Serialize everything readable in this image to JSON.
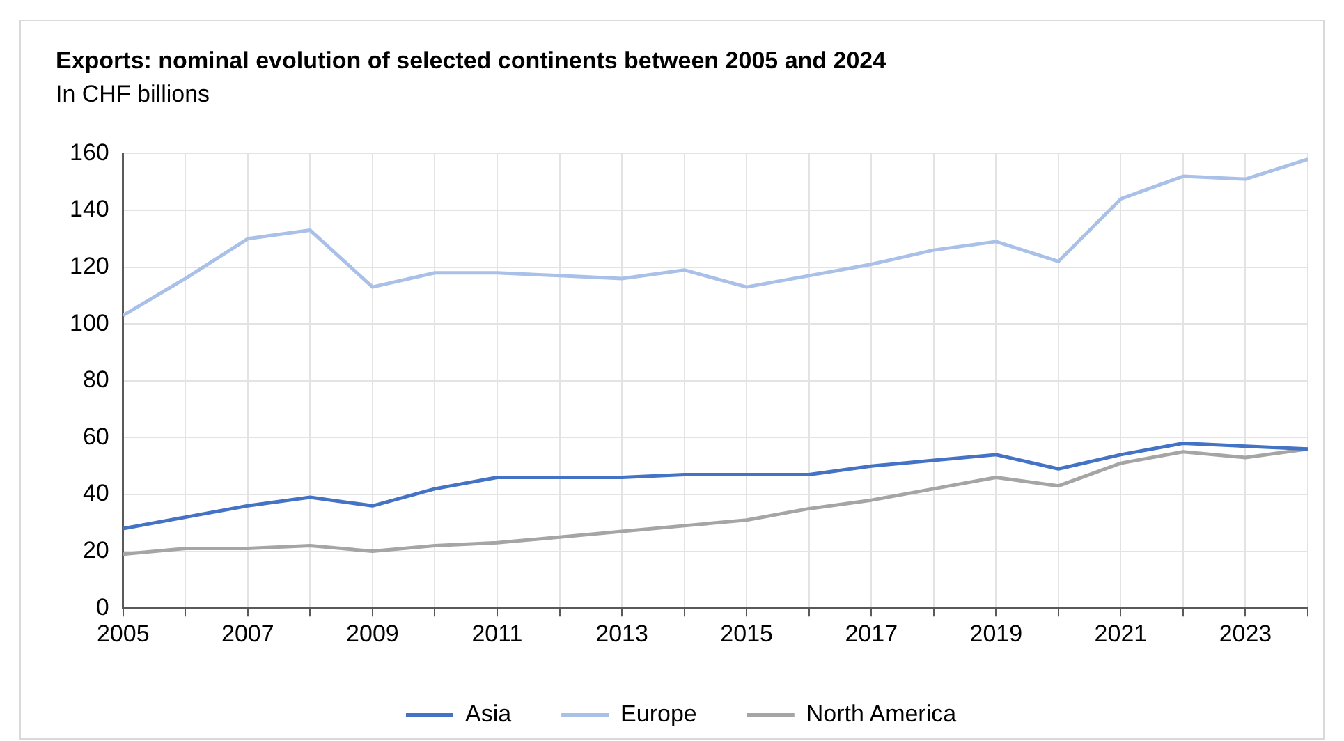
{
  "chart_data": {
    "type": "line",
    "title": "Exports: nominal evolution of selected continents between 2005 and 2024",
    "subtitle": "In CHF billions",
    "x": [
      2005,
      2006,
      2007,
      2008,
      2009,
      2010,
      2011,
      2012,
      2013,
      2014,
      2015,
      2016,
      2017,
      2018,
      2019,
      2020,
      2021,
      2022,
      2023,
      2024
    ],
    "series": [
      {
        "name": "Asia",
        "color": "#4472c4",
        "values": [
          28,
          32,
          36,
          39,
          36,
          42,
          46,
          46,
          46,
          47,
          47,
          47,
          50,
          52,
          54,
          49,
          54,
          58,
          57,
          56
        ]
      },
      {
        "name": "Europe",
        "color": "#a9c0e8",
        "values": [
          103,
          116,
          130,
          133,
          113,
          118,
          118,
          117,
          116,
          119,
          113,
          117,
          121,
          126,
          129,
          122,
          144,
          152,
          151,
          158
        ]
      },
      {
        "name": "North America",
        "color": "#a5a5a5",
        "values": [
          19,
          21,
          21,
          22,
          20,
          22,
          23,
          25,
          27,
          29,
          31,
          35,
          38,
          42,
          46,
          43,
          51,
          55,
          53,
          56
        ]
      }
    ],
    "xlim": [
      2005,
      2024
    ],
    "xticks": [
      2005,
      {
        "value": 2006,
        "label": null
      },
      2007,
      {
        "value": 2008,
        "label": null
      },
      2009,
      {
        "value": 2010,
        "label": null
      },
      2011,
      {
        "value": 2012,
        "label": null
      },
      2013,
      {
        "value": 2014,
        "label": null
      },
      2015,
      {
        "value": 2016,
        "label": null
      },
      2017,
      {
        "value": 2018,
        "label": null
      },
      2019,
      {
        "value": 2020,
        "label": null
      },
      2021,
      {
        "value": 2022,
        "label": null
      },
      2023,
      {
        "value": 2024,
        "label": null
      }
    ],
    "ylim": [
      0,
      160
    ],
    "yticks": [
      0,
      20,
      40,
      60,
      80,
      100,
      120,
      140,
      160
    ],
    "grid": true,
    "legend": "bottom",
    "marker": "none",
    "line_style": "solid"
  }
}
